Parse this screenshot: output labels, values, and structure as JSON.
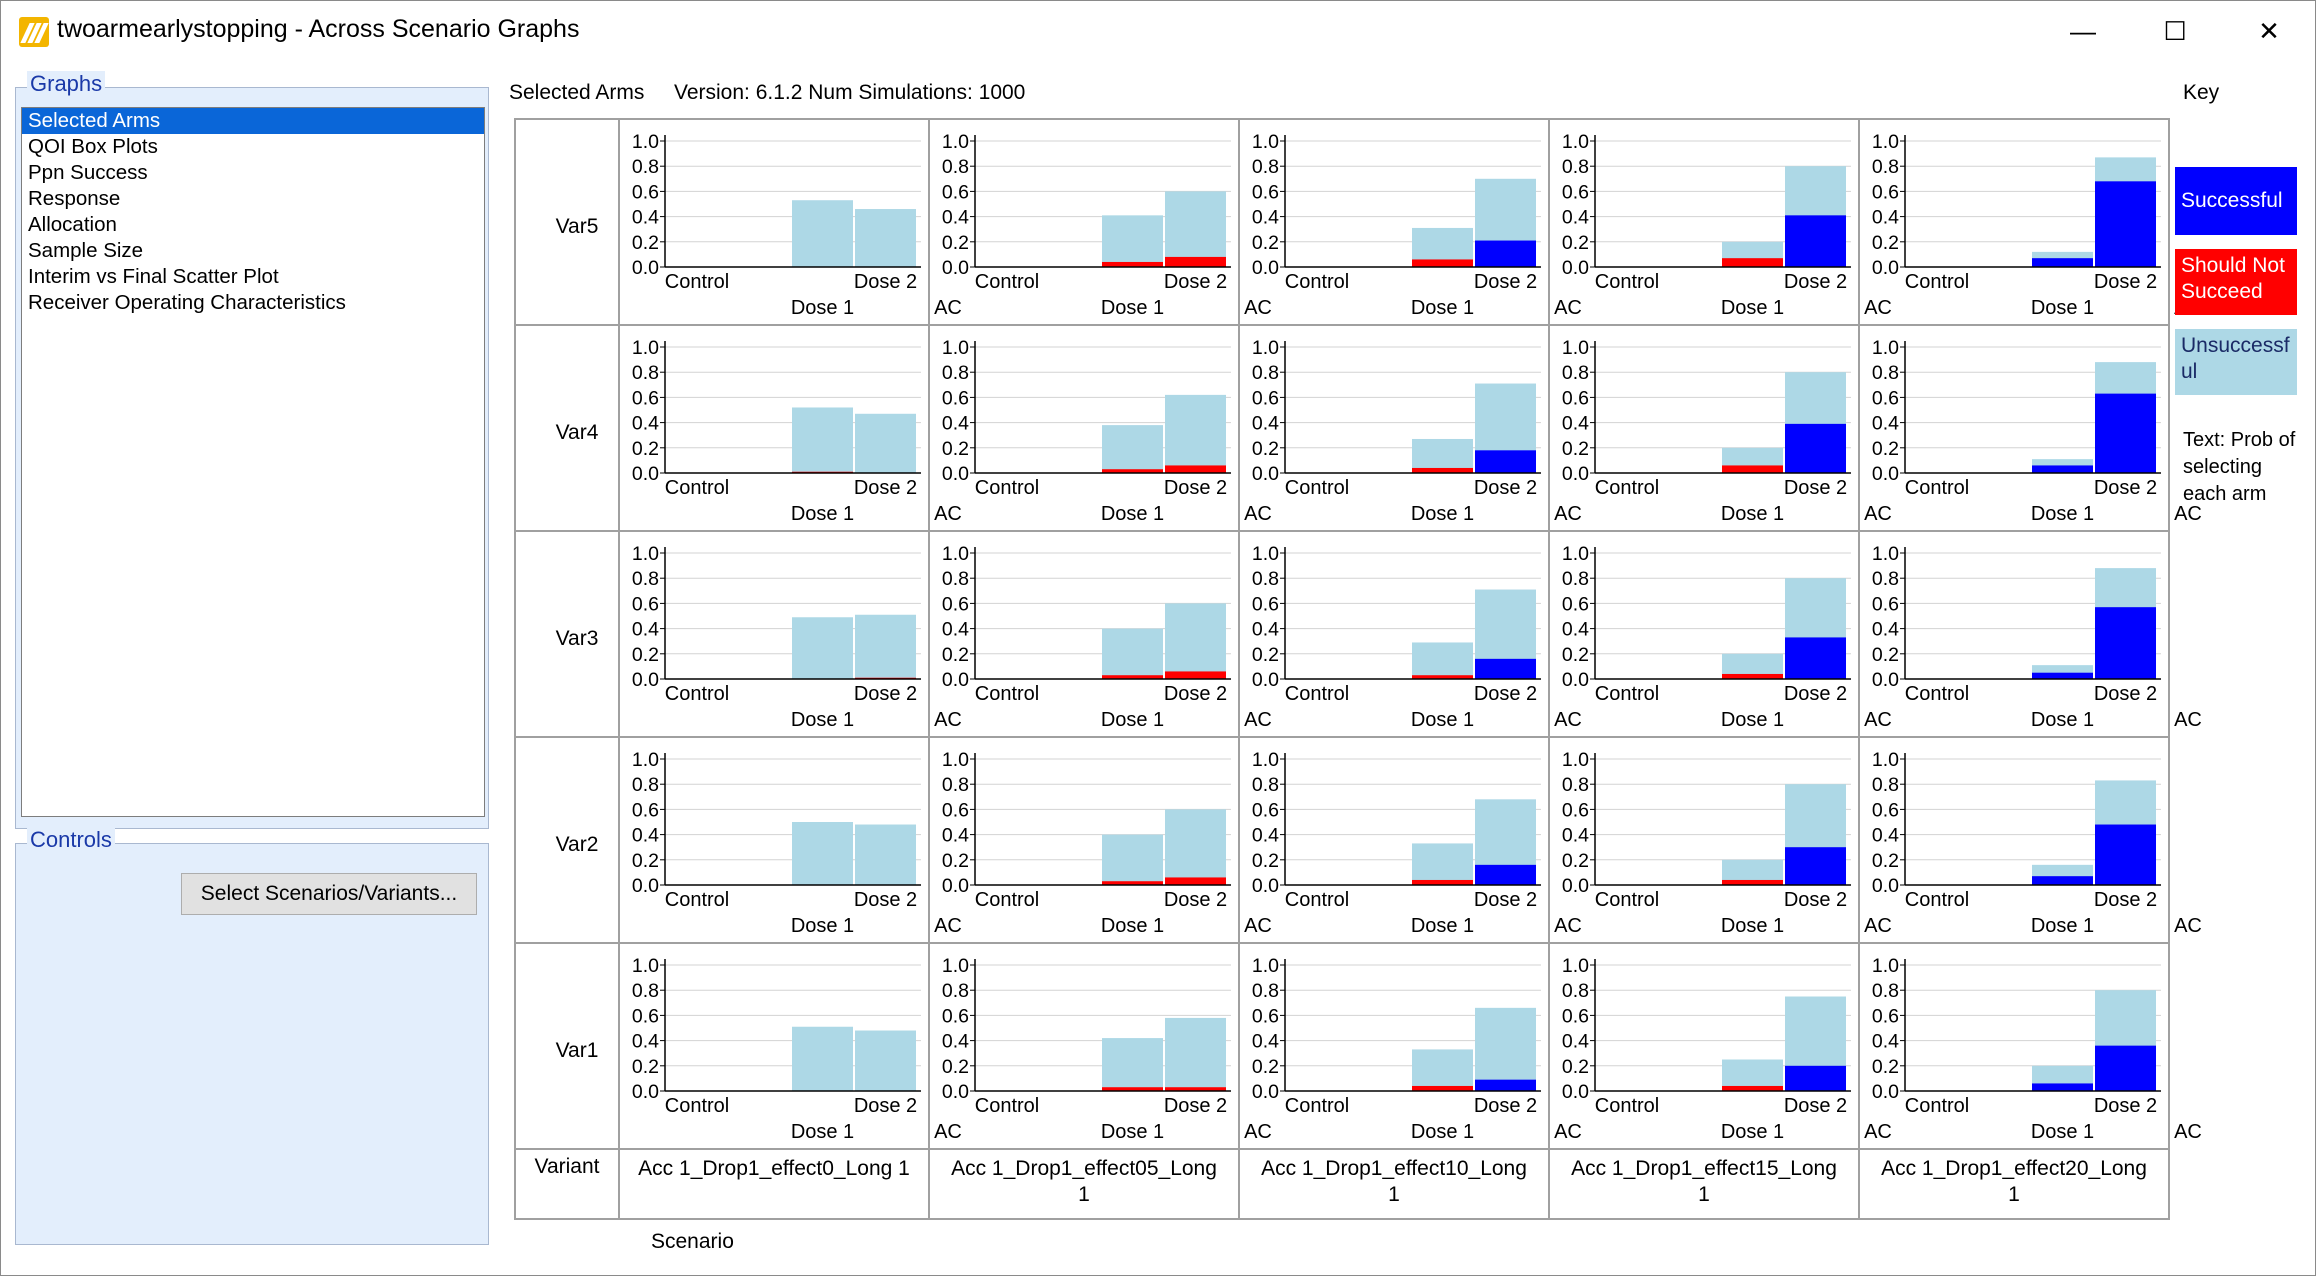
{
  "window": {
    "title": "twoarmearlystopping - Across Scenario Graphs",
    "minimize": "—",
    "maximize": "☐",
    "close": "✕"
  },
  "graphs_panel": {
    "label": "Graphs",
    "items": [
      "Selected Arms",
      "QOI Box Plots",
      "Ppn Success",
      "Response",
      "Allocation",
      "Sample Size",
      "Interim vs Final Scatter Plot",
      "Receiver Operating Characteristics"
    ],
    "selected_index": 0
  },
  "controls_panel": {
    "label": "Controls",
    "select_button": "Select Scenarios/Variants..."
  },
  "header": {
    "graph_name": "Selected Arms",
    "version": "Version: 6.1.2  Num Simulations: 1000",
    "key_label": "Key"
  },
  "legend": {
    "successful": "Successful",
    "should_not_succeed": "Should Not Succeed",
    "unsuccessful": "Unsuccessful",
    "text": "Text: Prob of selecting each arm"
  },
  "colors": {
    "successful": "#0000ff",
    "should_not_succeed": "#ff0000",
    "unsuccessful": "#add8e6",
    "axis": "#000000",
    "grid": "#d3d3d3"
  },
  "chart_data": {
    "type": "bar",
    "stacked": true,
    "ylim": [
      0,
      1.0
    ],
    "yticks": [
      "0.0",
      "0.2",
      "0.4",
      "0.6",
      "0.8",
      "1.0"
    ],
    "xlabels_row1": [
      "Control",
      "Dose 2"
    ],
    "xlabels_row2": [
      "Dose 1",
      "AC"
    ],
    "categories": [
      "Control",
      "Dose 1",
      "Dose 2",
      "AC"
    ],
    "row_axis_label": "Variant",
    "col_axis_label": "Scenario",
    "rows": [
      "Var5",
      "Var4",
      "Var3",
      "Var2",
      "Var1"
    ],
    "cols": [
      "Acc 1_Drop1_effect0_Long 1",
      "Acc 1_Drop1_effect05_Long 1",
      "Acc 1_Drop1_effect10_Long 1",
      "Acc 1_Drop1_effect15_Long 1",
      "Acc 1_Drop1_effect20_Long 1"
    ],
    "panels": [
      [
        {
          "dose1": {
            "total": 0.53,
            "successful": 0,
            "should_not": 0
          },
          "dose2": {
            "total": 0.46,
            "successful": 0,
            "should_not": 0
          }
        },
        {
          "dose1": {
            "total": 0.41,
            "successful": 0,
            "should_not": 0.04
          },
          "dose2": {
            "total": 0.6,
            "successful": 0,
            "should_not": 0.08
          }
        },
        {
          "dose1": {
            "total": 0.31,
            "successful": 0,
            "should_not": 0.06
          },
          "dose2": {
            "total": 0.7,
            "successful": 0.21,
            "should_not": 0
          }
        },
        {
          "dose1": {
            "total": 0.2,
            "successful": 0,
            "should_not": 0.07
          },
          "dose2": {
            "total": 0.8,
            "successful": 0.41,
            "should_not": 0
          }
        },
        {
          "dose1": {
            "total": 0.12,
            "successful": 0.07,
            "should_not": 0
          },
          "dose2": {
            "total": 0.87,
            "successful": 0.68,
            "should_not": 0
          }
        }
      ],
      [
        {
          "dose1": {
            "total": 0.52,
            "successful": 0,
            "should_not": 0.01
          },
          "dose2": {
            "total": 0.47,
            "successful": 0,
            "should_not": 0
          }
        },
        {
          "dose1": {
            "total": 0.38,
            "successful": 0,
            "should_not": 0.03
          },
          "dose2": {
            "total": 0.62,
            "successful": 0,
            "should_not": 0.06
          }
        },
        {
          "dose1": {
            "total": 0.27,
            "successful": 0,
            "should_not": 0.04
          },
          "dose2": {
            "total": 0.71,
            "successful": 0.18,
            "should_not": 0
          }
        },
        {
          "dose1": {
            "total": 0.2,
            "successful": 0,
            "should_not": 0.06
          },
          "dose2": {
            "total": 0.8,
            "successful": 0.39,
            "should_not": 0
          }
        },
        {
          "dose1": {
            "total": 0.11,
            "successful": 0.06,
            "should_not": 0
          },
          "dose2": {
            "total": 0.88,
            "successful": 0.63,
            "should_not": 0
          }
        }
      ],
      [
        {
          "dose1": {
            "total": 0.49,
            "successful": 0,
            "should_not": 0
          },
          "dose2": {
            "total": 0.51,
            "successful": 0,
            "should_not": 0.01
          }
        },
        {
          "dose1": {
            "total": 0.4,
            "successful": 0,
            "should_not": 0.03
          },
          "dose2": {
            "total": 0.6,
            "successful": 0,
            "should_not": 0.06
          }
        },
        {
          "dose1": {
            "total": 0.29,
            "successful": 0,
            "should_not": 0.03
          },
          "dose2": {
            "total": 0.71,
            "successful": 0.16,
            "should_not": 0
          }
        },
        {
          "dose1": {
            "total": 0.2,
            "successful": 0,
            "should_not": 0.04
          },
          "dose2": {
            "total": 0.8,
            "successful": 0.33,
            "should_not": 0
          }
        },
        {
          "dose1": {
            "total": 0.11,
            "successful": 0.05,
            "should_not": 0
          },
          "dose2": {
            "total": 0.88,
            "successful": 0.57,
            "should_not": 0
          }
        }
      ],
      [
        {
          "dose1": {
            "total": 0.5,
            "successful": 0,
            "should_not": 0
          },
          "dose2": {
            "total": 0.48,
            "successful": 0,
            "should_not": 0
          }
        },
        {
          "dose1": {
            "total": 0.4,
            "successful": 0,
            "should_not": 0.03
          },
          "dose2": {
            "total": 0.6,
            "successful": 0,
            "should_not": 0.06
          }
        },
        {
          "dose1": {
            "total": 0.33,
            "successful": 0,
            "should_not": 0.04
          },
          "dose2": {
            "total": 0.68,
            "successful": 0.16,
            "should_not": 0
          }
        },
        {
          "dose1": {
            "total": 0.2,
            "successful": 0,
            "should_not": 0.04
          },
          "dose2": {
            "total": 0.8,
            "successful": 0.3,
            "should_not": 0
          }
        },
        {
          "dose1": {
            "total": 0.16,
            "successful": 0.07,
            "should_not": 0
          },
          "dose2": {
            "total": 0.83,
            "successful": 0.48,
            "should_not": 0
          }
        }
      ],
      [
        {
          "dose1": {
            "total": 0.51,
            "successful": 0,
            "should_not": 0
          },
          "dose2": {
            "total": 0.48,
            "successful": 0,
            "should_not": 0
          }
        },
        {
          "dose1": {
            "total": 0.42,
            "successful": 0,
            "should_not": 0.03
          },
          "dose2": {
            "total": 0.58,
            "successful": 0,
            "should_not": 0.03
          }
        },
        {
          "dose1": {
            "total": 0.33,
            "successful": 0,
            "should_not": 0.04
          },
          "dose2": {
            "total": 0.66,
            "successful": 0.09,
            "should_not": 0
          }
        },
        {
          "dose1": {
            "total": 0.25,
            "successful": 0,
            "should_not": 0.04
          },
          "dose2": {
            "total": 0.75,
            "successful": 0.2,
            "should_not": 0
          }
        },
        {
          "dose1": {
            "total": 0.2,
            "successful": 0.06,
            "should_not": 0
          },
          "dose2": {
            "total": 0.8,
            "successful": 0.36,
            "should_not": 0
          }
        }
      ]
    ]
  }
}
